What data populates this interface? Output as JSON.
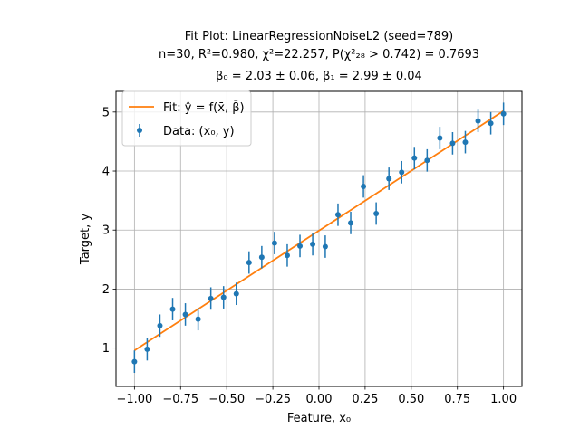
{
  "chart_data": {
    "type": "scatter",
    "title_lines": [
      "Fit Plot: LinearRegressionNoiseL2 (seed=789)",
      "n=30, R²=0.980, χ²=22.257, P(χ²₂₈ > 0.742) = 0.7693",
      "β₀ = 2.03 ± 0.06, β₁ = 2.99 ± 0.04"
    ],
    "xlabel": "Feature, x₀",
    "ylabel": "Target, y",
    "xlim": [
      -1.1,
      1.1
    ],
    "ylim": [
      0.35,
      5.35
    ],
    "xticks": [
      -1.0,
      -0.75,
      -0.5,
      -0.25,
      0.0,
      0.25,
      0.5,
      0.75,
      1.0
    ],
    "xtick_labels": [
      "−1.00",
      "−0.75",
      "−0.50",
      "−0.25",
      "0.00",
      "0.25",
      "0.50",
      "0.75",
      "1.00"
    ],
    "yticks": [
      1,
      2,
      3,
      4,
      5
    ],
    "ytick_labels": [
      "1",
      "2",
      "3",
      "4",
      "5"
    ],
    "grid": true,
    "legend_position": "upper-left",
    "legend": [
      {
        "label": "Fit: ŷ = f(x̄, β̄)",
        "marker": "line",
        "color": "#ff7f0e"
      },
      {
        "label": "Data: (x₀, y)",
        "marker": "errorbar-point",
        "color": "#1f77b4"
      }
    ],
    "series": [
      {
        "name": "Data: (x₀, y)",
        "color": "#1f77b4",
        "x": [
          -1.0,
          -0.931,
          -0.862,
          -0.793,
          -0.724,
          -0.655,
          -0.586,
          -0.517,
          -0.448,
          -0.379,
          -0.31,
          -0.241,
          -0.172,
          -0.103,
          -0.034,
          0.034,
          0.103,
          0.172,
          0.241,
          0.31,
          0.379,
          0.448,
          0.517,
          0.586,
          0.655,
          0.724,
          0.793,
          0.862,
          0.931,
          1.0
        ],
        "y": [
          0.77,
          0.98,
          1.38,
          1.66,
          1.57,
          1.49,
          1.84,
          1.86,
          1.92,
          2.45,
          2.54,
          2.78,
          2.57,
          2.73,
          2.76,
          2.72,
          3.26,
          3.12,
          3.74,
          3.28,
          3.87,
          3.98,
          4.22,
          4.18,
          4.56,
          4.47,
          4.49,
          4.85,
          4.81,
          4.97
        ],
        "yerr": [
          0.19,
          0.19,
          0.19,
          0.19,
          0.19,
          0.19,
          0.19,
          0.19,
          0.19,
          0.19,
          0.19,
          0.19,
          0.19,
          0.19,
          0.19,
          0.19,
          0.19,
          0.19,
          0.19,
          0.19,
          0.19,
          0.19,
          0.19,
          0.19,
          0.19,
          0.19,
          0.19,
          0.19,
          0.19,
          0.19
        ]
      },
      {
        "name": "Fit: ŷ = f(x̄, β̄)",
        "color": "#ff7f0e",
        "x": [
          -1.0,
          1.0
        ],
        "y": [
          0.96,
          5.02
        ]
      }
    ]
  }
}
